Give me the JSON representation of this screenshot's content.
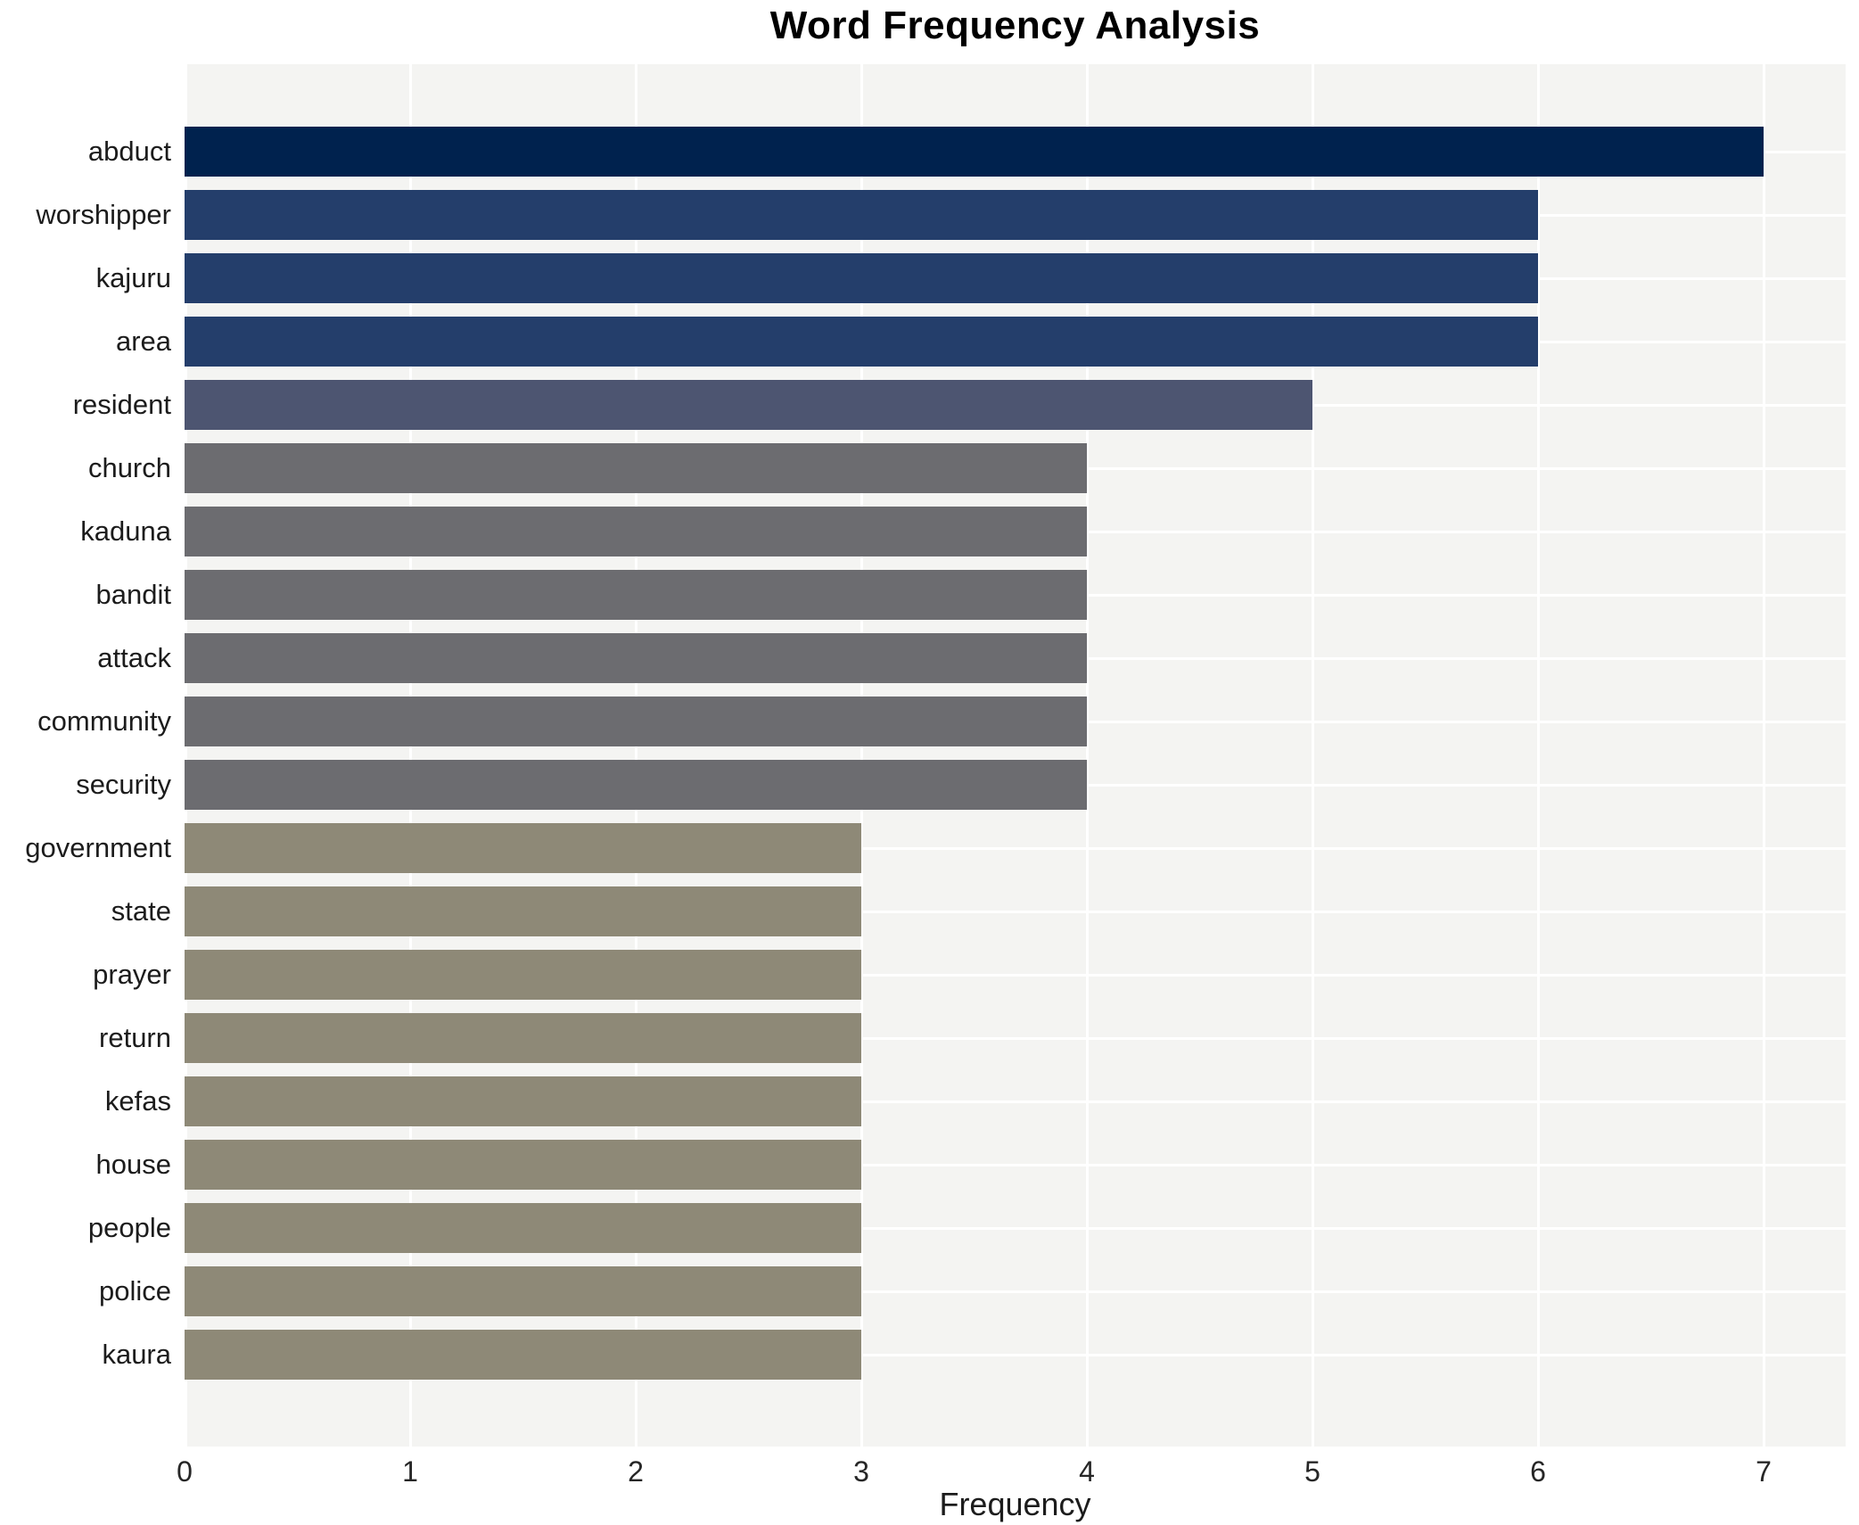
{
  "chart_data": {
    "type": "bar",
    "orientation": "horizontal",
    "title": "Word Frequency Analysis",
    "xlabel": "Frequency",
    "ylabel": "",
    "categories": [
      "abduct",
      "worshipper",
      "kajuru",
      "area",
      "resident",
      "church",
      "kaduna",
      "bandit",
      "attack",
      "community",
      "security",
      "government",
      "state",
      "prayer",
      "return",
      "kefas",
      "house",
      "people",
      "police",
      "kaura"
    ],
    "values": [
      7,
      6,
      6,
      6,
      5,
      4,
      4,
      4,
      4,
      4,
      4,
      3,
      3,
      3,
      3,
      3,
      3,
      3,
      3,
      3
    ],
    "xlim": [
      0,
      7
    ],
    "xticks": [
      0,
      1,
      2,
      3,
      4,
      5,
      6,
      7
    ],
    "grid": true,
    "legend_position": "none",
    "colors": {
      "bar_by_value": {
        "7": "#00224e",
        "6": "#243e6b",
        "5": "#4d5571",
        "4": "#6c6c70",
        "3": "#8e8977"
      },
      "plot_background": "#f4f4f2",
      "gridline": "#ffffff",
      "text": "#1c1c1c"
    }
  }
}
